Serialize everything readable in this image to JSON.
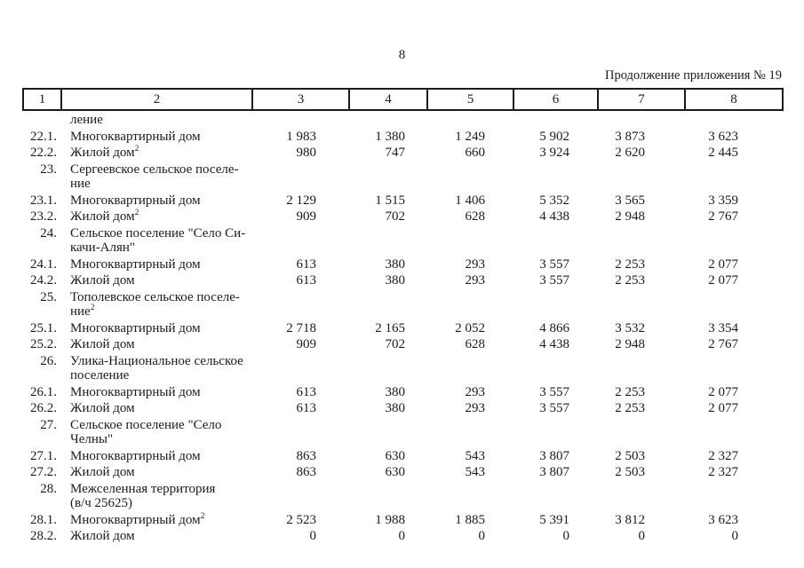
{
  "page": {
    "number": "8",
    "continuation_note": "Продолжение приложения № 19"
  },
  "table": {
    "column_headers": [
      "1",
      "2",
      "3",
      "4",
      "5",
      "6",
      "7",
      "8"
    ],
    "rows": [
      {
        "num": "",
        "name": "ление",
        "sup": "",
        "values": [
          "",
          "",
          "",
          "",
          "",
          ""
        ]
      },
      {
        "num": "22.1.",
        "name": "Многоквартирный дом",
        "sup": "",
        "values": [
          "1 983",
          "1 380",
          "1 249",
          "5 902",
          "3 873",
          "3 623"
        ]
      },
      {
        "num": "22.2.",
        "name": "Жилой дом",
        "sup": "2",
        "values": [
          "980",
          "747",
          "660",
          "3 924",
          "2 620",
          "2 445"
        ]
      },
      {
        "num": "23.",
        "name": "Сергеевское сельское поселе-\nние",
        "sup": "",
        "values": [
          "",
          "",
          "",
          "",
          "",
          ""
        ]
      },
      {
        "num": "23.1.",
        "name": "Многоквартирный дом",
        "sup": "",
        "values": [
          "2 129",
          "1 515",
          "1 406",
          "5 352",
          "3 565",
          "3 359"
        ]
      },
      {
        "num": "23.2.",
        "name": "Жилой дом",
        "sup": "2",
        "values": [
          "909",
          "702",
          "628",
          "4 438",
          "2 948",
          "2 767"
        ]
      },
      {
        "num": "24.",
        "name": "Сельское поселение \"Село Си-\nкачи-Алян\"",
        "sup": "",
        "values": [
          "",
          "",
          "",
          "",
          "",
          ""
        ]
      },
      {
        "num": "24.1.",
        "name": "Многоквартирный дом",
        "sup": "",
        "values": [
          "613",
          "380",
          "293",
          "3 557",
          "2 253",
          "2 077"
        ]
      },
      {
        "num": "24.2.",
        "name": "Жилой дом",
        "sup": "",
        "values": [
          "613",
          "380",
          "293",
          "3 557",
          "2 253",
          "2 077"
        ]
      },
      {
        "num": "25.",
        "name": "Тополевское сельское поселе-\nние",
        "sup": "2",
        "values": [
          "",
          "",
          "",
          "",
          "",
          ""
        ]
      },
      {
        "num": "25.1.",
        "name": "Многоквартирный дом",
        "sup": "",
        "values": [
          "2 718",
          "2 165",
          "2 052",
          "4 866",
          "3 532",
          "3 354"
        ]
      },
      {
        "num": "25.2.",
        "name": "Жилой дом",
        "sup": "",
        "values": [
          "909",
          "702",
          "628",
          "4 438",
          "2 948",
          "2 767"
        ]
      },
      {
        "num": "26.",
        "name": "Улика-Национальное сельское\nпоселение",
        "sup": "",
        "values": [
          "",
          "",
          "",
          "",
          "",
          ""
        ]
      },
      {
        "num": "26.1.",
        "name": "Многоквартирный дом",
        "sup": "",
        "values": [
          "613",
          "380",
          "293",
          "3 557",
          "2 253",
          "2 077"
        ]
      },
      {
        "num": "26.2.",
        "name": "Жилой дом",
        "sup": "",
        "values": [
          "613",
          "380",
          "293",
          "3 557",
          "2 253",
          "2 077"
        ]
      },
      {
        "num": "27.",
        "name": "Сельское поселение \"Село\nЧелны\"",
        "sup": "",
        "values": [
          "",
          "",
          "",
          "",
          "",
          ""
        ]
      },
      {
        "num": "27.1.",
        "name": "Многоквартирный дом",
        "sup": "",
        "values": [
          "863",
          "630",
          "543",
          "3 807",
          "2 503",
          "2 327"
        ]
      },
      {
        "num": "27.2.",
        "name": "Жилой дом",
        "sup": "",
        "values": [
          "863",
          "630",
          "543",
          "3 807",
          "2 503",
          "2 327"
        ]
      },
      {
        "num": "28.",
        "name": "Межселенная территория\n(в/ч 25625)",
        "sup": "",
        "values": [
          "",
          "",
          "",
          "",
          "",
          ""
        ]
      },
      {
        "num": "28.1.",
        "name": "Многоквартирный дом",
        "sup": "2",
        "values": [
          "2 523",
          "1 988",
          "1 885",
          "5 391",
          "3 812",
          "3 623"
        ]
      },
      {
        "num": "28.2.",
        "name": "Жилой дом",
        "sup": "",
        "values": [
          "0",
          "0",
          "0",
          "0",
          "0",
          "0"
        ]
      }
    ]
  }
}
